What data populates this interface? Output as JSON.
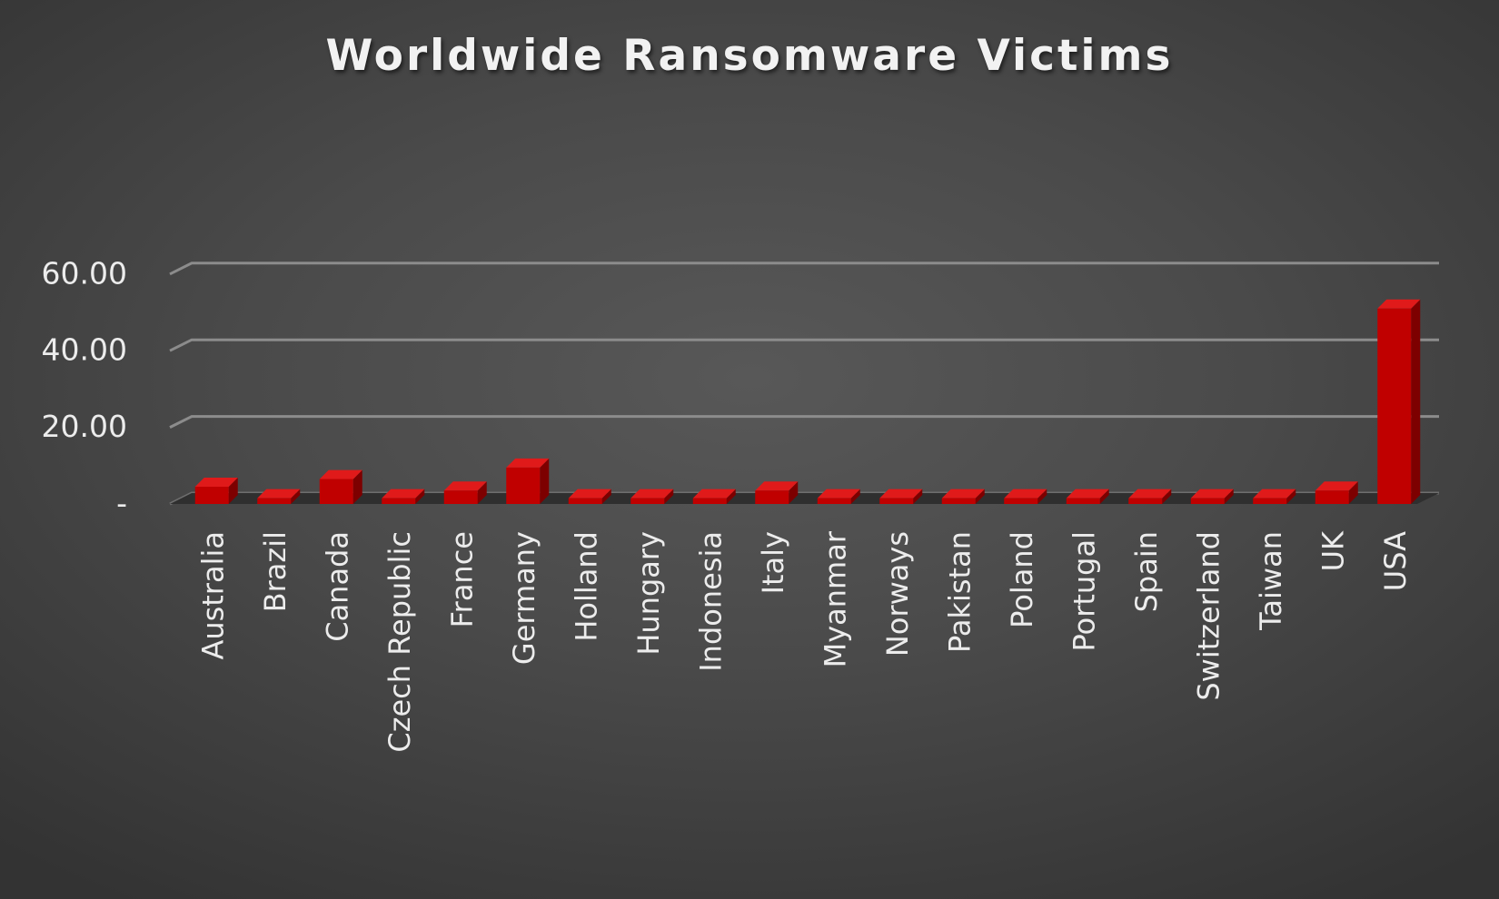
{
  "chart_data": {
    "type": "bar",
    "title": "Worldwide Ransomware Victims",
    "xlabel": "",
    "ylabel": "",
    "ylim": [
      0,
      60
    ],
    "y_ticks": [
      {
        "value": 0,
        "label": "-"
      },
      {
        "value": 20,
        "label": "20.00"
      },
      {
        "value": 40,
        "label": "40.00"
      },
      {
        "value": 60,
        "label": "60.00"
      }
    ],
    "categories": [
      "Australia",
      "Brazil",
      "Canada",
      "Czech Republic",
      "France",
      "Germany",
      "Holland",
      "Hungary",
      "Indonesia",
      "Italy",
      "Myanmar",
      "Norways",
      "Pakistan",
      "Poland",
      "Portugal",
      "Spain",
      "Switzerland",
      "Taiwan",
      "UK",
      "USA"
    ],
    "values": [
      4.5,
      1.5,
      6.5,
      1.5,
      3.5,
      9.5,
      1.5,
      1.5,
      1.5,
      3.5,
      1.5,
      1.5,
      1.5,
      1.5,
      1.5,
      1.5,
      1.5,
      1.5,
      3.5,
      51
    ],
    "grid": true,
    "legend": "none",
    "colors": {
      "bar_front": "#c00000",
      "bar_top": "#e01a1a",
      "bar_side": "#7d0000",
      "gridline": "#8c8c8c",
      "text": "#ececec"
    }
  }
}
